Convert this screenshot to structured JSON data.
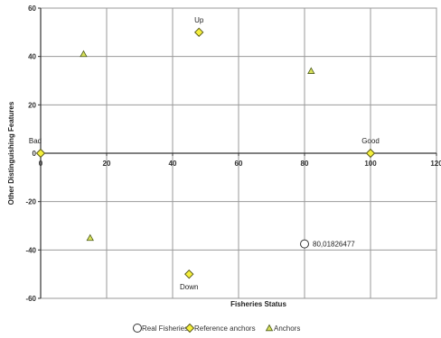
{
  "chart_data": {
    "type": "scatter",
    "title": "",
    "xlabel": "Fisheries Status",
    "ylabel": "Other Distinguishing Features",
    "xlim": [
      0,
      120
    ],
    "ylim": [
      -60,
      60
    ],
    "x_ticks": [
      0,
      20,
      40,
      60,
      80,
      100,
      120
    ],
    "y_ticks": [
      -60,
      -40,
      -20,
      0,
      20,
      40,
      60
    ],
    "grid": true,
    "legend_position": "bottom",
    "series": [
      {
        "name": "Real Fisheries",
        "marker": "circle",
        "color": "#ffffff",
        "edge_color": "#333333",
        "points": [
          {
            "x": 80,
            "y": -37.5,
            "label": "80,01826477"
          }
        ]
      },
      {
        "name": "Reference anchors",
        "marker": "diamond",
        "color": "#f5ef3c",
        "edge_color": "#5a5a1a",
        "points": [
          {
            "x": 0,
            "y": 0,
            "label": "Bad"
          },
          {
            "x": 100,
            "y": 0,
            "label": "Good"
          },
          {
            "x": 48,
            "y": 50,
            "label": "Up"
          },
          {
            "x": 45,
            "y": -50,
            "label": "Down"
          }
        ]
      },
      {
        "name": "Anchors",
        "marker": "triangle",
        "color": "#d8e05a",
        "edge_color": "#4a5a1a",
        "points": [
          {
            "x": 13,
            "y": 41
          },
          {
            "x": 82,
            "y": 34
          },
          {
            "x": 15,
            "y": -35
          }
        ]
      }
    ]
  }
}
